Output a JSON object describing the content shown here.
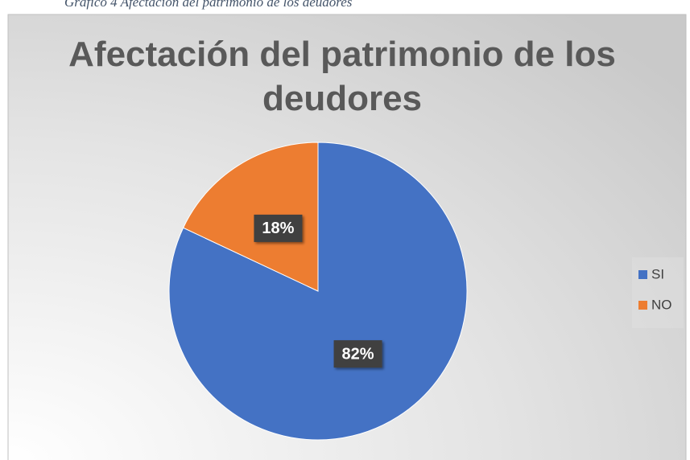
{
  "caption": "Gráfico 4 Afectación del patrimonio de los deudores",
  "chart_data": {
    "type": "pie",
    "title": "Afectación del patrimonio de los deudores",
    "categories": [
      "SI",
      "NO"
    ],
    "values": [
      82,
      18
    ],
    "value_labels": [
      "82%",
      "18%"
    ],
    "colors": [
      "#4472c4",
      "#ed7d31"
    ],
    "legend": "right"
  }
}
